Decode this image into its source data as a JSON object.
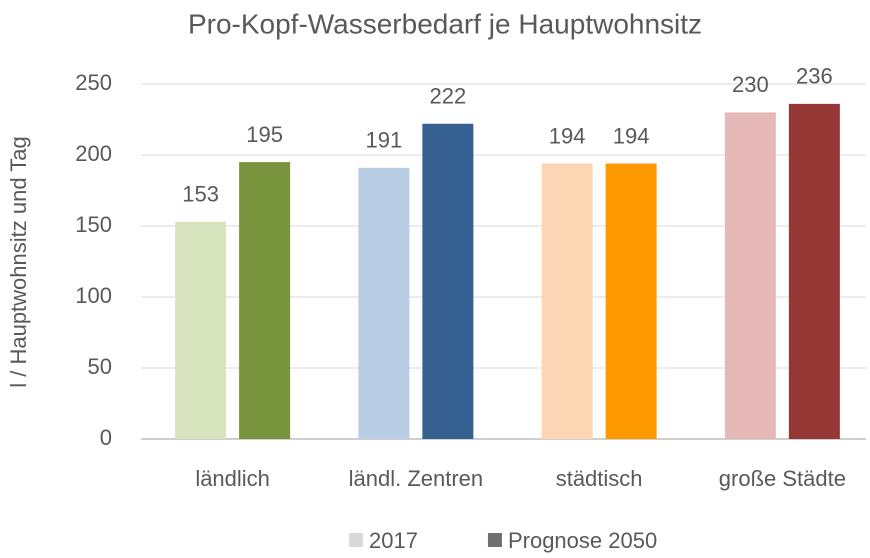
{
  "chart_data": {
    "type": "bar",
    "title": "Pro-Kopf-Wasserbedarf je Hauptwohnsitz",
    "y_label": "l / Hauptwohnsitz und Tag",
    "categories": [
      "ländlich",
      "ländl. Zentren",
      "städtisch",
      "große Städte"
    ],
    "series": [
      {
        "name": "2017",
        "color": "#d9d9d9",
        "colors": [
          "#d7e4bd",
          "#b9cde5",
          "#fcd5b5",
          "#e6b9b8"
        ],
        "values": [
          153,
          191,
          194,
          230
        ]
      },
      {
        "name": "Prognose 2050",
        "color": "#6f6f6f",
        "colors": [
          "#77933c",
          "#376092",
          "#ff9900",
          "#953735"
        ],
        "values": [
          195,
          222,
          194,
          236
        ]
      }
    ],
    "ylim": [
      0,
      250
    ],
    "yticks": [
      0,
      50,
      100,
      150,
      200,
      250
    ],
    "grid": true
  }
}
